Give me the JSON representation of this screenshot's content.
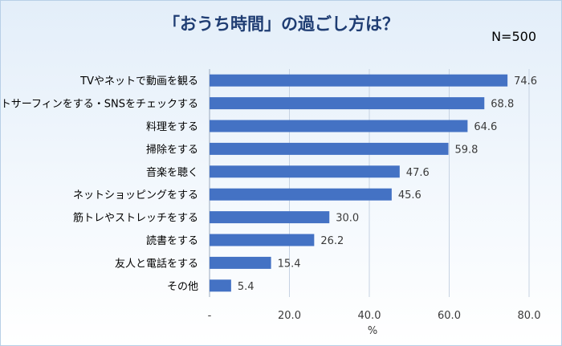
{
  "chart_data": {
    "type": "bar",
    "orientation": "horizontal",
    "title": "「おうち時間」の過ごし方は？",
    "annotation": "N=500",
    "xlabel": "%",
    "xlim": [
      0,
      80
    ],
    "xticks": [
      "-",
      "20.0",
      "40.0",
      "60.0",
      "80.0"
    ],
    "grid": true,
    "bar_color": "#4472C4",
    "categories": [
      "TVやネットで動画を観る",
      "ネットサーフィンをする・SNSをチェックする",
      "料理をする",
      "掃除をする",
      "音楽を聴く",
      "ネットショッピングをする",
      "筋トレやストレッチをする",
      "読書をする",
      "友人と電話をする",
      "その他"
    ],
    "values": [
      74.6,
      68.8,
      64.6,
      59.8,
      47.6,
      45.6,
      30.0,
      26.2,
      15.4,
      5.4
    ],
    "value_labels": [
      "74.6",
      "68.8",
      "64.6",
      "59.8",
      "47.6",
      "45.6",
      "30.0",
      "26.2",
      "15.4",
      "5.4"
    ]
  }
}
